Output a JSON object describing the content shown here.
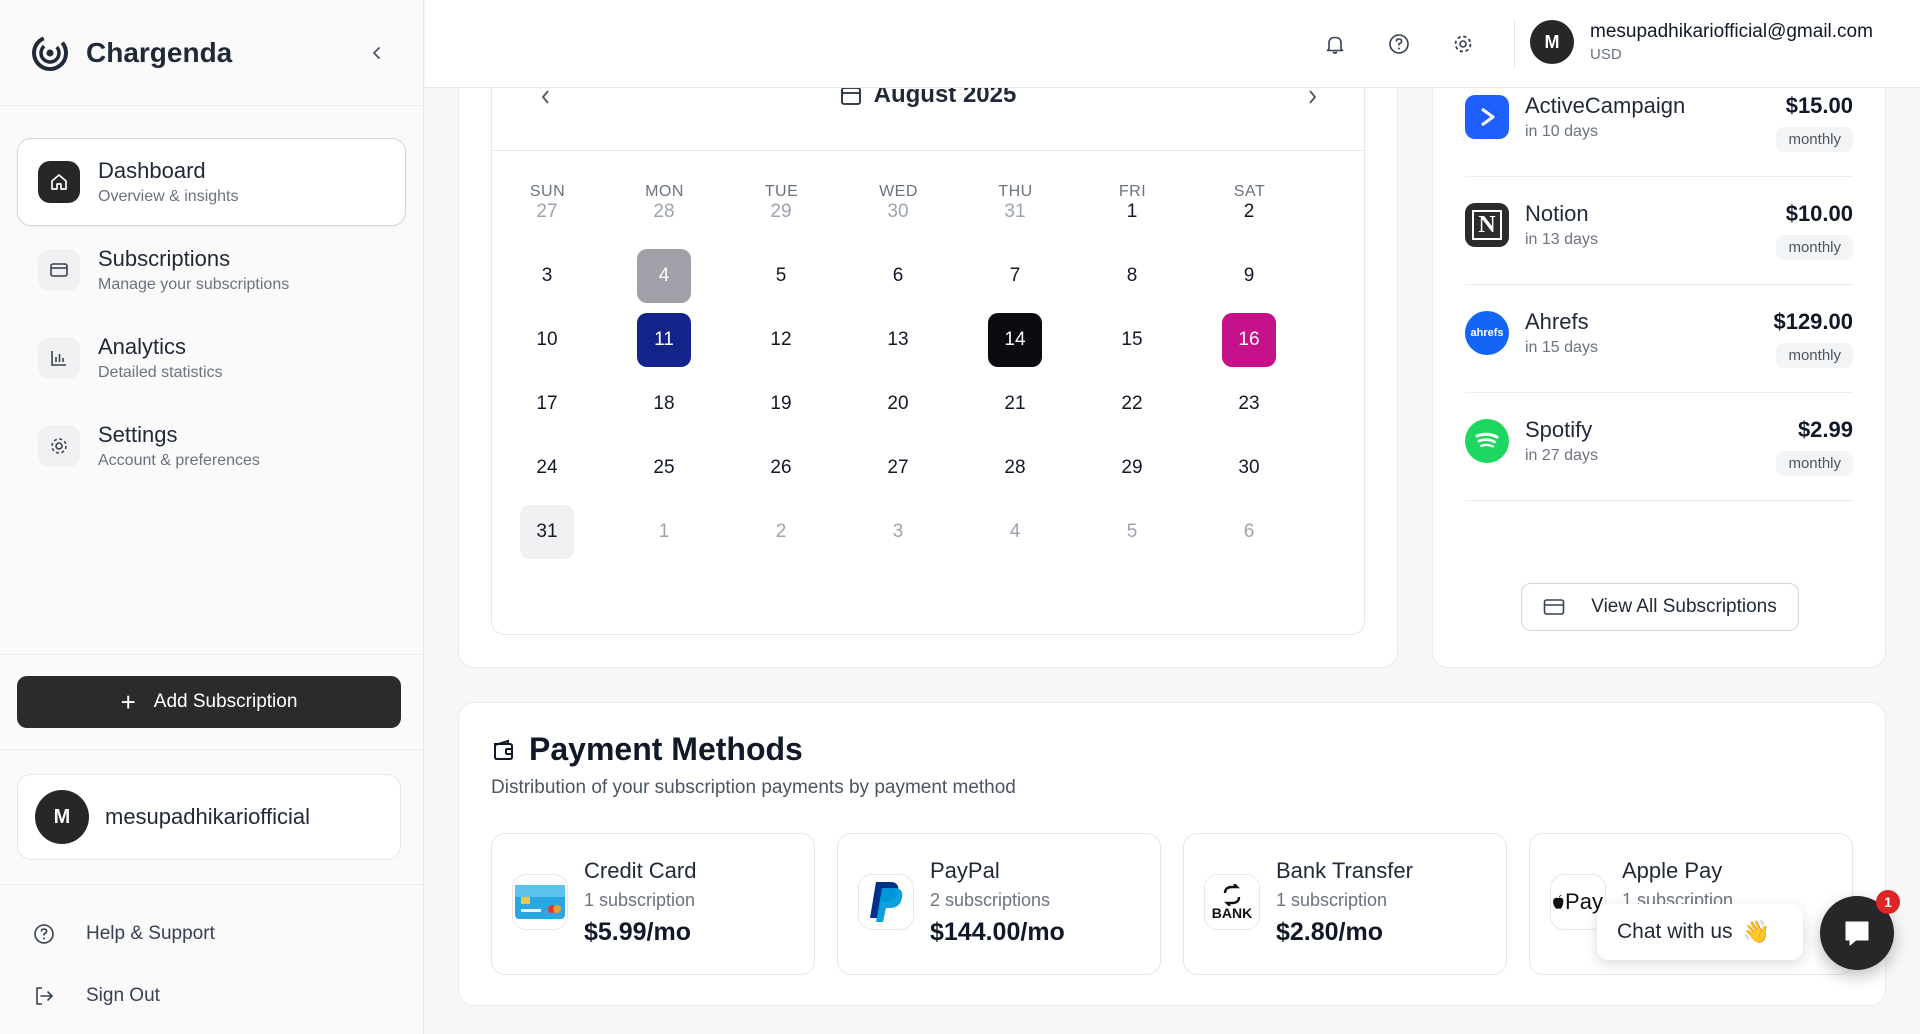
{
  "brand": {
    "name": "Chargenda"
  },
  "nav": [
    {
      "title": "Dashboard",
      "subtitle": "Overview & insights"
    },
    {
      "title": "Subscriptions",
      "subtitle": "Manage your subscriptions"
    },
    {
      "title": "Analytics",
      "subtitle": "Detailed statistics"
    },
    {
      "title": "Settings",
      "subtitle": "Account & preferences"
    }
  ],
  "sidebar": {
    "add_label": "Add Subscription",
    "user_initial": "M",
    "username": "mesupadhikariofficial",
    "help_label": "Help & Support",
    "signout_label": "Sign Out"
  },
  "header": {
    "email": "mesupadhikariofficial@gmail.com",
    "currency": "USD",
    "initial": "M"
  },
  "calendar": {
    "month": "August 2025",
    "weekdays": [
      "SUN",
      "MON",
      "TUE",
      "WED",
      "THU",
      "FRI",
      "SAT"
    ],
    "weeks": [
      [
        "27",
        "28",
        "29",
        "30",
        "31",
        "1",
        "2"
      ],
      [
        "3",
        "4",
        "5",
        "6",
        "7",
        "8",
        "9"
      ],
      [
        "10",
        "11",
        "12",
        "13",
        "14",
        "15",
        "16"
      ],
      [
        "17",
        "18",
        "19",
        "20",
        "21",
        "22",
        "23"
      ],
      [
        "24",
        "25",
        "26",
        "27",
        "28",
        "29",
        "30"
      ],
      [
        "31",
        "1",
        "2",
        "3",
        "4",
        "5",
        "6"
      ]
    ],
    "highlights": {
      "4": "#a1a1aa",
      "11": "#14238a",
      "14": "#0b0b12",
      "16": "#c5128a"
    }
  },
  "upcoming": {
    "partial_cycle": "monthly",
    "items": [
      {
        "name": "ActiveCampaign",
        "when": "in 10 days",
        "price": "$15.00",
        "cycle": "monthly",
        "logo": "activecampaign-icon",
        "logo_text": "",
        "color": "#1f5eff"
      },
      {
        "name": "Notion",
        "when": "in 13 days",
        "price": "$10.00",
        "cycle": "monthly",
        "logo": "notion-icon",
        "logo_text": "N",
        "color": "#2b2b2e"
      },
      {
        "name": "Ahrefs",
        "when": "in 15 days",
        "price": "$129.00",
        "cycle": "monthly",
        "logo": "ahrefs-icon",
        "logo_text": "ahrefs",
        "color": "#1465f5"
      },
      {
        "name": "Spotify",
        "when": "in 27 days",
        "price": "$2.99",
        "cycle": "monthly",
        "logo": "spotify-icon",
        "logo_text": "",
        "color": "#1ed760"
      }
    ],
    "view_all_label": "View All Subscriptions"
  },
  "payment_methods": {
    "title": "Payment Methods",
    "subtitle": "Distribution of your subscription payments by payment method",
    "items": [
      {
        "name": "Credit Card",
        "count": "1 subscription",
        "amount": "$5.99/mo",
        "icon": "credit-card-icon"
      },
      {
        "name": "PayPal",
        "count": "2 subscriptions",
        "amount": "$144.00/mo",
        "icon": "paypal-icon"
      },
      {
        "name": "Bank Transfer",
        "count": "1 subscription",
        "amount": "$2.80/mo",
        "icon": "bank-transfer-icon",
        "logo_text": "BANK"
      },
      {
        "name": "Apple Pay",
        "count": "1 subscription",
        "amount": "",
        "icon": "apple-pay-icon",
        "logo_text": "Pay"
      }
    ]
  },
  "chat": {
    "label": "Chat with us",
    "emoji": "👋",
    "badge": "1"
  }
}
